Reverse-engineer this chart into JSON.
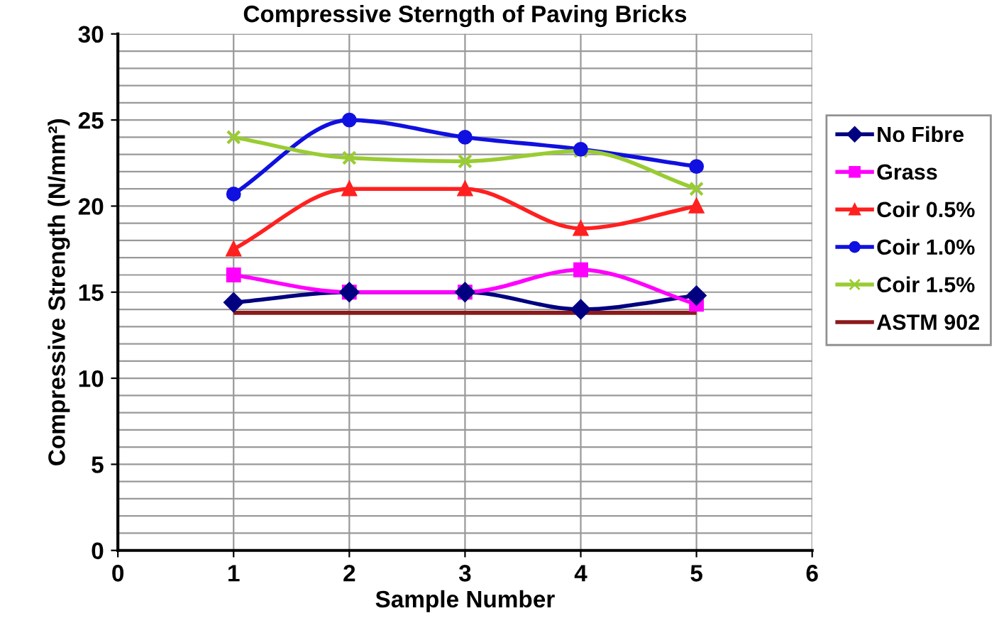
{
  "chart_data": {
    "type": "line",
    "title": "Compressive Sterngth of Paving Bricks",
    "xlabel": "Sample Number",
    "ylabel": "Compressive Strength (N/mm²)",
    "x": [
      1,
      2,
      3,
      4,
      5
    ],
    "series": [
      {
        "name": "No Fibre",
        "color": "#000080",
        "marker": "diamond",
        "values": [
          14.4,
          15.0,
          15.0,
          14.0,
          14.8
        ]
      },
      {
        "name": "Grass",
        "color": "#ff00ff",
        "marker": "square",
        "values": [
          16.0,
          15.0,
          15.0,
          16.3,
          14.3
        ]
      },
      {
        "name": "Coir 0.5%",
        "color": "#ff2020",
        "marker": "triangle",
        "values": [
          17.5,
          21.0,
          21.0,
          18.7,
          20.0
        ]
      },
      {
        "name": "Coir 1.0%",
        "color": "#1010e0",
        "marker": "circle",
        "values": [
          20.7,
          25.0,
          24.0,
          23.3,
          22.3
        ]
      },
      {
        "name": "Coir 1.5%",
        "color": "#99cc33",
        "marker": "cross",
        "values": [
          24.0,
          22.8,
          22.6,
          23.2,
          21.0
        ]
      },
      {
        "name": "ASTM 902",
        "color": "#8b1a1a",
        "marker": "none",
        "values": [
          13.8,
          13.8,
          13.8,
          13.8,
          13.8
        ]
      }
    ],
    "xlim": [
      0,
      6
    ],
    "xticks": [
      0,
      1,
      2,
      3,
      4,
      5,
      6
    ],
    "ylim": [
      0,
      30
    ],
    "yticks": [
      0,
      {
        "value": 1,
        "label": null
      },
      {
        "value": 2,
        "label": null
      },
      {
        "value": 3,
        "label": null
      },
      {
        "value": 4,
        "label": null
      },
      5,
      {
        "value": 6,
        "label": null
      },
      {
        "value": 7,
        "label": null
      },
      {
        "value": 8,
        "label": null
      },
      {
        "value": 9,
        "label": null
      },
      10,
      {
        "value": 11,
        "label": null
      },
      {
        "value": 12,
        "label": null
      },
      {
        "value": 13,
        "label": null
      },
      {
        "value": 14,
        "label": null
      },
      15,
      {
        "value": 16,
        "label": null
      },
      {
        "value": 17,
        "label": null
      },
      {
        "value": 18,
        "label": null
      },
      {
        "value": 19,
        "label": null
      },
      20,
      {
        "value": 21,
        "label": null
      },
      {
        "value": 22,
        "label": null
      },
      {
        "value": 23,
        "label": null
      },
      {
        "value": 24,
        "label": null
      },
      25,
      {
        "value": 26,
        "label": null
      },
      {
        "value": 27,
        "label": null
      },
      {
        "value": 28,
        "label": null
      },
      {
        "value": 29,
        "label": null
      },
      30
    ],
    "grid": true,
    "legend": "right",
    "line_style": "solid"
  }
}
